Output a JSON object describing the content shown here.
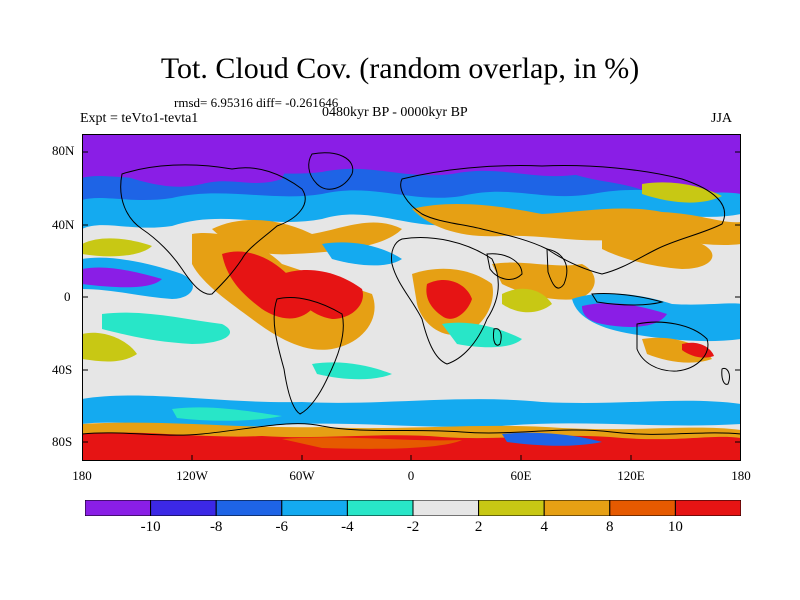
{
  "title": "Tot. Cloud Cov. (random overlap, in %)",
  "stats": "rmsd= 6.95316 diff= -0.261646",
  "experiment": "Expt = teVto1-tevta1",
  "period": "0480kyr BP - 0000kyr BP",
  "season": "JJA",
  "axes": {
    "y_ticks": [
      "80N",
      "40N",
      "0",
      "40S",
      "80S"
    ],
    "x_ticks": [
      "180",
      "120W",
      "60W",
      "0",
      "60E",
      "120E",
      "180"
    ]
  },
  "colorbar": {
    "labels": [
      "-10",
      "-8",
      "-6",
      "-4",
      "-2",
      "2",
      "4",
      "8",
      "10"
    ],
    "colors": [
      "#8a1ee6",
      "#3c28e6",
      "#1e64e6",
      "#14aaf0",
      "#28e6c8",
      "#e6e6e6",
      "#c8c814",
      "#e6a014",
      "#e65a00",
      "#e61414"
    ]
  },
  "palette": {
    "strong_neg": "#8a1ee6",
    "neg_blue": "#3c28e6",
    "neg_mid": "#1e64e6",
    "neg_light": "#14aaf0",
    "neg_teal": "#28e6c8",
    "neutral": "#e6e6e6",
    "pos_yellow": "#c8c814",
    "pos_orange": "#e6a014",
    "pos_dark": "#e65a00",
    "strong_pos": "#e61414",
    "coast": "#000000"
  }
}
